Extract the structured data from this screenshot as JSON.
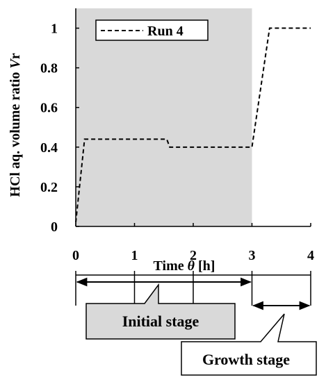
{
  "chart_data": {
    "type": "line",
    "ylabel_main": "HCl aq. volume ratio ",
    "ylabel_var": "V",
    "ylabel_sub": "r",
    "xlabel_main": "Time ",
    "xlabel_var": "θ",
    "xlabel_unit": " [h]",
    "xlim": [
      0,
      4
    ],
    "ylim": [
      0,
      1.1
    ],
    "x_ticks": [
      0,
      1,
      2,
      3,
      4
    ],
    "y_ticks": [
      0,
      0.2,
      0.4,
      0.6,
      0.8,
      1
    ],
    "x_tick_labels": [
      "0",
      "1",
      "2",
      "3",
      "4"
    ],
    "y_tick_labels": [
      "0",
      "0.2",
      "0.4",
      "0.6",
      "0.8",
      "1"
    ],
    "shaded_region": {
      "x_start": 0,
      "x_end": 3,
      "color": "#d9d9d9"
    },
    "series": [
      {
        "name": "Run 4",
        "style": "dashed",
        "x": [
          0,
          0.15,
          1.55,
          1.6,
          3.0,
          3.3,
          4.0
        ],
        "y": [
          0.02,
          0.44,
          0.44,
          0.4,
          0.4,
          1.0,
          1.0
        ]
      }
    ],
    "legend_position": "top-left",
    "annotations": [
      {
        "label": "Initial stage",
        "from_x": 0,
        "to_x": 3,
        "fill": "#d9d9d9"
      },
      {
        "label": "Growth stage",
        "from_x": 3,
        "to_x": 4,
        "fill": "#ffffff"
      }
    ]
  }
}
